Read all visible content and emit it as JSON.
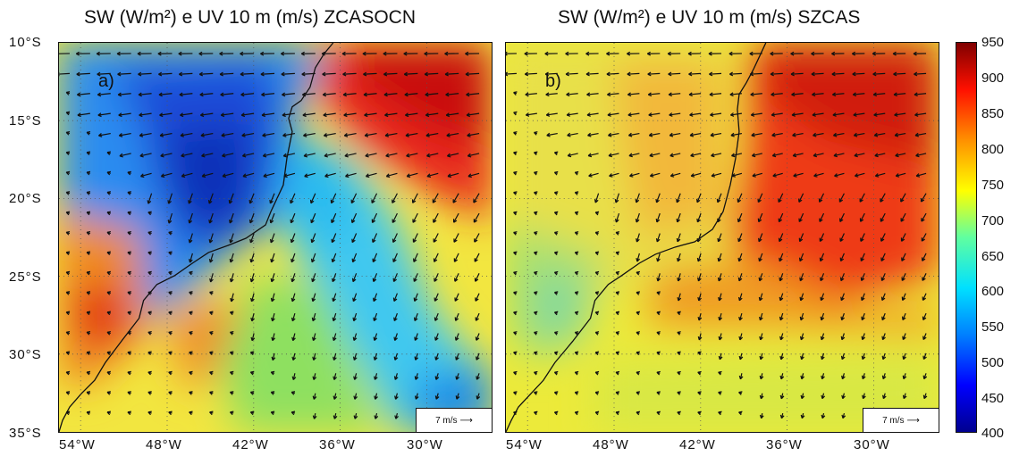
{
  "panel_a": {
    "title": "SW (W/m²) e UV 10 m (m/s) ZCASOCN",
    "label": "a)"
  },
  "panel_b": {
    "title": "SW (W/m²) e UV 10 m (m/s) SZCAS",
    "label": "b)"
  },
  "reference_vector": "7 m/s",
  "latitude_ticks": [
    "10°S",
    "15°S",
    "20°S",
    "25°S",
    "30°S",
    "35°S"
  ],
  "longitude_ticks": [
    "54°W",
    "48°W",
    "42°W",
    "36°W",
    "30°W"
  ],
  "colorbar": {
    "ticks": [
      "950",
      "900",
      "850",
      "800",
      "750",
      "700",
      "650",
      "600",
      "550",
      "500",
      "450",
      "400"
    ],
    "range": [
      400,
      950
    ],
    "colors": [
      "#00008f",
      "#0000ff",
      "#0080ff",
      "#00e0ff",
      "#60ffa0",
      "#ffff00",
      "#ff9000",
      "#ff1000",
      "#800000"
    ]
  },
  "map_extent": {
    "lon": [
      -55.5,
      -25.5
    ],
    "lat": [
      -35,
      -10
    ]
  }
}
